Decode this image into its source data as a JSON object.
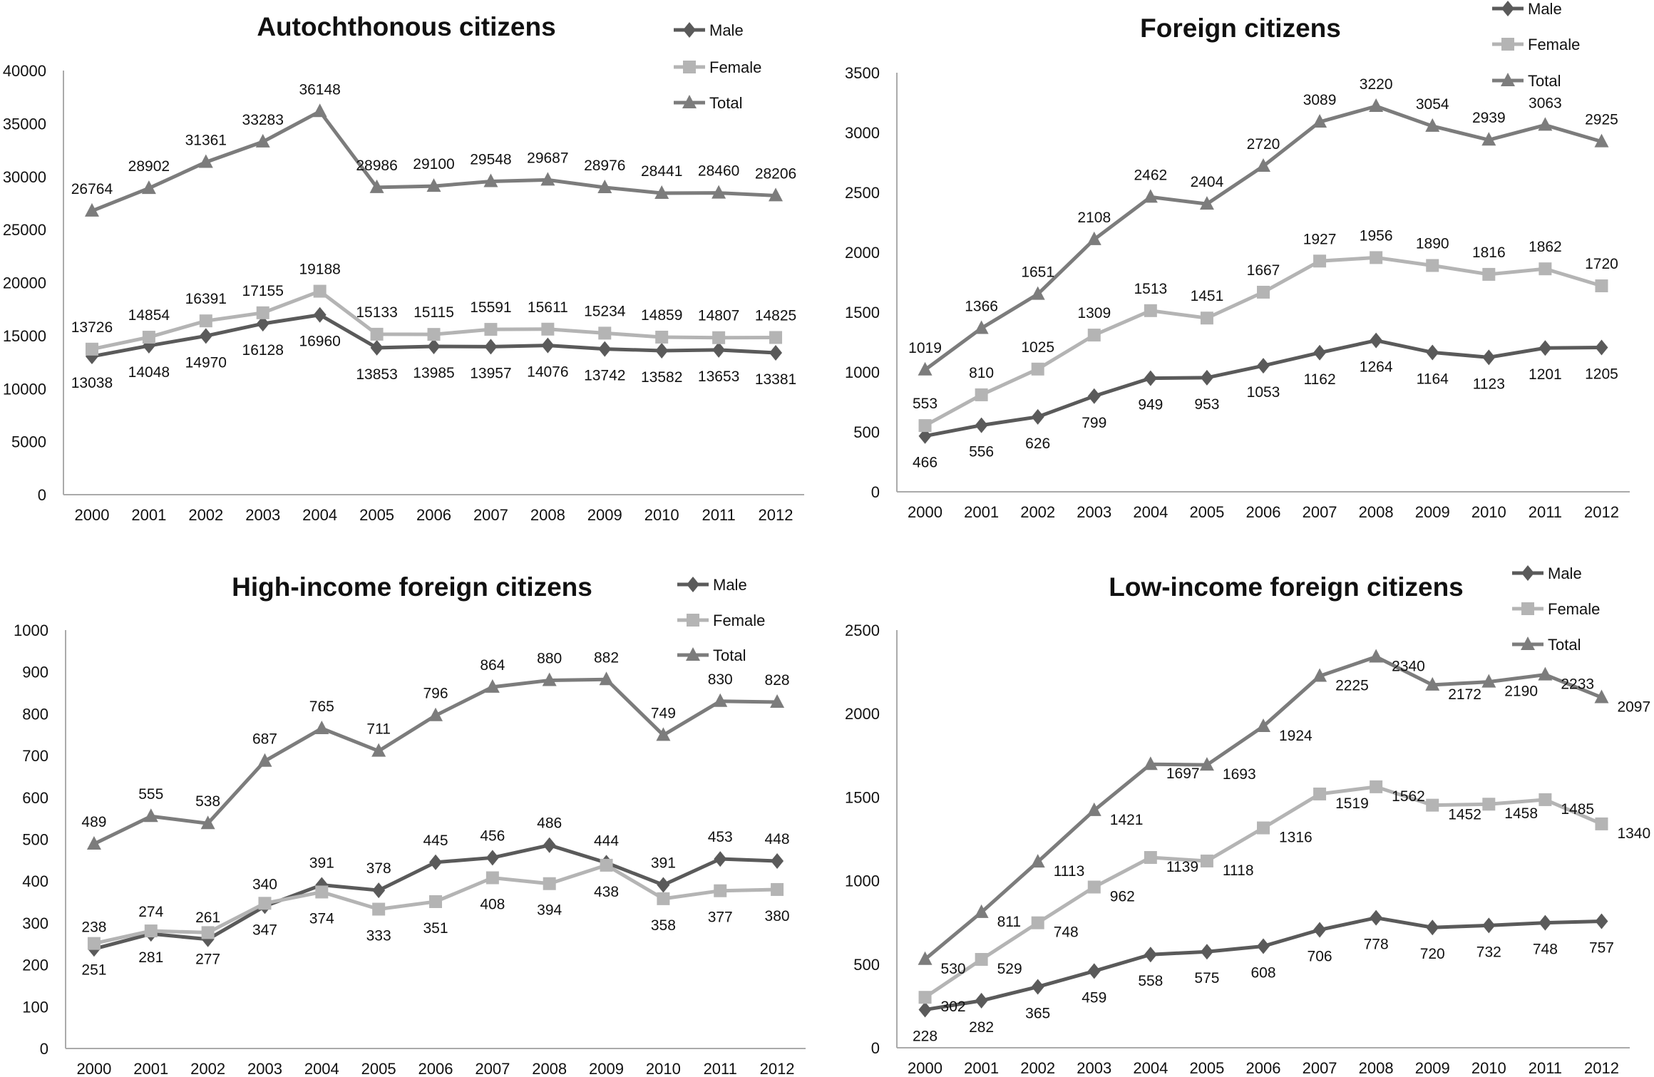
{
  "colors": {
    "male": "#5a5a5a",
    "female": "#b4b4b4",
    "total": "#7c7c7c",
    "axis": "#aaaaaa"
  },
  "chart_data": [
    {
      "type": "line",
      "title": "Autochthonous citizens",
      "categories": [
        "2000",
        "2001",
        "2002",
        "2003",
        "2004",
        "2005",
        "2006",
        "2007",
        "2008",
        "2009",
        "2010",
        "2011",
        "2012"
      ],
      "ylim": [
        0,
        40000
      ],
      "yticks": [
        0,
        5000,
        10000,
        15000,
        20000,
        25000,
        30000,
        35000,
        40000
      ],
      "grid": false,
      "legend": "top-right",
      "series": [
        {
          "name": "Male",
          "key": "male",
          "marker": "diamond",
          "label_pos": "below",
          "values": [
            13038,
            14048,
            14970,
            16128,
            16960,
            13853,
            13985,
            13957,
            14076,
            13742,
            13582,
            13653,
            13381
          ]
        },
        {
          "name": "Female",
          "key": "female",
          "marker": "square",
          "label_pos": "above",
          "values": [
            13726,
            14854,
            16391,
            17155,
            19188,
            15133,
            15115,
            15591,
            15611,
            15234,
            14859,
            14807,
            14825
          ]
        },
        {
          "name": "Total",
          "key": "total",
          "marker": "triangle",
          "label_pos": "above",
          "values": [
            26764,
            28902,
            31361,
            33283,
            36148,
            28986,
            29100,
            29548,
            29687,
            28976,
            28441,
            28460,
            28206
          ]
        }
      ]
    },
    {
      "type": "line",
      "title": "Foreign citizens",
      "categories": [
        "2000",
        "2001",
        "2002",
        "2003",
        "2004",
        "2005",
        "2006",
        "2007",
        "2008",
        "2009",
        "2010",
        "2011",
        "2012"
      ],
      "ylim": [
        0,
        3500
      ],
      "yticks": [
        0,
        500,
        1000,
        1500,
        2000,
        2500,
        3000,
        3500
      ],
      "grid": false,
      "legend": "top-right",
      "series": [
        {
          "name": "Male",
          "key": "male",
          "marker": "diamond",
          "label_pos": "below",
          "values": [
            466,
            556,
            626,
            799,
            949,
            953,
            1053,
            1162,
            1264,
            1164,
            1123,
            1201,
            1205
          ]
        },
        {
          "name": "Female",
          "key": "female",
          "marker": "square",
          "label_pos": "above",
          "values": [
            553,
            810,
            1025,
            1309,
            1513,
            1451,
            1667,
            1927,
            1956,
            1890,
            1816,
            1862,
            1720
          ]
        },
        {
          "name": "Total",
          "key": "total",
          "marker": "triangle",
          "label_pos": "above",
          "values": [
            1019,
            1366,
            1651,
            2108,
            2462,
            2404,
            2720,
            3089,
            3220,
            3054,
            2939,
            3063,
            2925
          ]
        }
      ]
    },
    {
      "type": "line",
      "title": "High-income foreign citizens",
      "categories": [
        "2000",
        "2001",
        "2002",
        "2003",
        "2004",
        "2005",
        "2006",
        "2007",
        "2008",
        "2009",
        "2010",
        "2011",
        "2012"
      ],
      "ylim": [
        0,
        1000
      ],
      "yticks": [
        0,
        100,
        200,
        300,
        400,
        500,
        600,
        700,
        800,
        900,
        1000
      ],
      "grid": false,
      "legend": "top-right",
      "series": [
        {
          "name": "Male",
          "key": "male",
          "marker": "diamond",
          "label_pos": "above",
          "values": [
            238,
            274,
            261,
            340,
            391,
            378,
            445,
            456,
            486,
            444,
            391,
            453,
            448
          ]
        },
        {
          "name": "Female",
          "key": "female",
          "marker": "square",
          "label_pos": "below",
          "values": [
            251,
            281,
            277,
            347,
            374,
            333,
            351,
            408,
            394,
            438,
            358,
            377,
            380
          ]
        },
        {
          "name": "Total",
          "key": "total",
          "marker": "triangle",
          "label_pos": "above",
          "values": [
            489,
            555,
            538,
            687,
            765,
            711,
            796,
            864,
            880,
            882,
            749,
            830,
            828
          ]
        }
      ]
    },
    {
      "type": "line",
      "title": "Low-income foreign citizens",
      "categories": [
        "2000",
        "2001",
        "2002",
        "2003",
        "2004",
        "2005",
        "2006",
        "2007",
        "2008",
        "2009",
        "2010",
        "2011",
        "2012"
      ],
      "ylim": [
        0,
        2500
      ],
      "yticks": [
        0,
        500,
        1000,
        1500,
        2000,
        2500
      ],
      "grid": false,
      "legend": "top-right",
      "series": [
        {
          "name": "Male",
          "key": "male",
          "marker": "diamond",
          "label_pos": "below",
          "values": [
            228,
            282,
            365,
            459,
            558,
            575,
            608,
            706,
            778,
            720,
            732,
            748,
            757
          ]
        },
        {
          "name": "Female",
          "key": "female",
          "marker": "square",
          "label_pos": "right",
          "values": [
            302,
            529,
            748,
            962,
            1139,
            1118,
            1316,
            1519,
            1562,
            1452,
            1458,
            1485,
            1340
          ]
        },
        {
          "name": "Total",
          "key": "total",
          "marker": "triangle",
          "label_pos": "right",
          "values": [
            530,
            811,
            1113,
            1421,
            1697,
            1693,
            1924,
            2225,
            2340,
            2172,
            2190,
            2233,
            2097
          ]
        }
      ]
    }
  ]
}
